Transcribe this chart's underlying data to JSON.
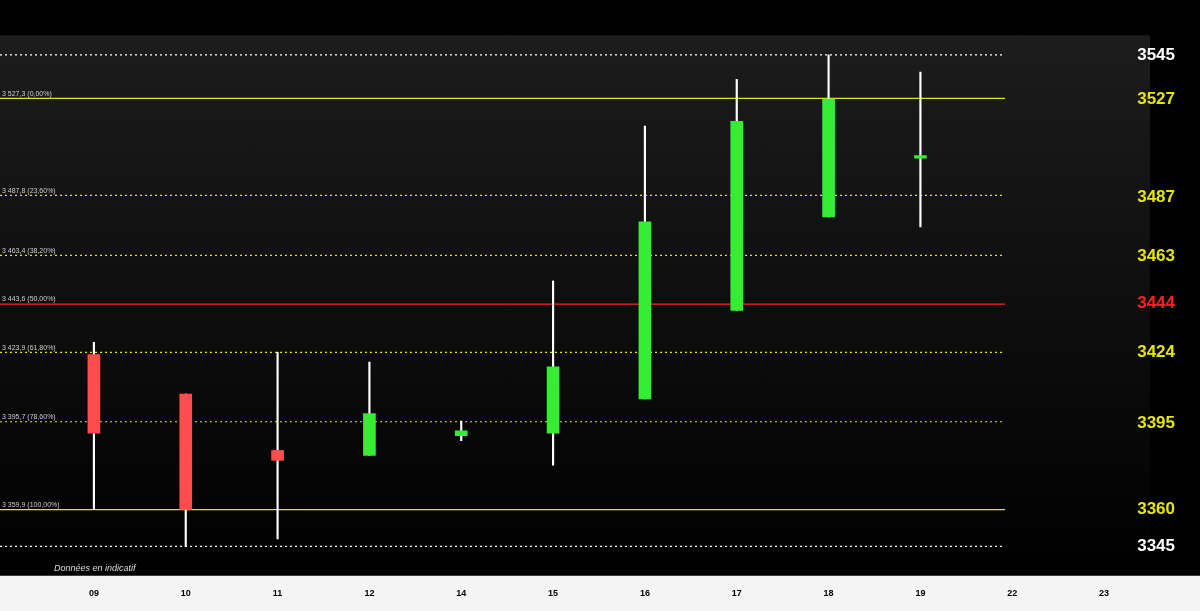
{
  "chart_data": {
    "type": "candlestick",
    "categories": [
      "09",
      "10",
      "11",
      "12",
      "14",
      "15",
      "16",
      "17",
      "18",
      "19",
      "22",
      "23"
    ],
    "ohlc": [
      [
        3423,
        3428,
        3360,
        3391
      ],
      [
        3407,
        3407,
        3345,
        3360
      ],
      [
        3384,
        3424,
        3348,
        3380
      ],
      [
        3382,
        3420,
        3382,
        3399
      ],
      [
        3390,
        3396,
        3388,
        3392
      ],
      [
        3391,
        3453,
        3378,
        3418
      ],
      [
        3405,
        3516,
        3405,
        3477
      ],
      [
        3441,
        3535,
        3441,
        3518
      ],
      [
        3479,
        3545,
        3479,
        3527
      ],
      [
        3503,
        3538,
        3475,
        3504
      ],
      null,
      null
    ],
    "colors": [
      "#ff4d4d",
      "#ff4d4d",
      "#ff4d4d",
      "#33ee33",
      "#33ee33",
      "#33ee33",
      "#33ee33",
      "#33ee33",
      "#33ee33",
      "#33ee33",
      null,
      null
    ],
    "ylim": [
      3333,
      3553
    ],
    "yticks": [
      3545,
      3527,
      3487,
      3463,
      3444,
      3424,
      3395,
      3360,
      3345
    ],
    "ref_lines": [
      {
        "axis": "y",
        "value": 3545,
        "label": null,
        "color": "#ffffff",
        "line_style": "dotted"
      },
      {
        "axis": "y",
        "value": 3527.3,
        "label": "3 527,3 (0,00%)",
        "color": "#e6e600",
        "line_style": "solid"
      },
      {
        "axis": "y",
        "value": 3487.8,
        "label": "3 487,8 (23,60%)",
        "color": "#e6e600",
        "line_style": "dotted"
      },
      {
        "axis": "y",
        "value": 3463.4,
        "label": "3 463,4 (38,20%)",
        "color": "#e6e600",
        "line_style": "dotted"
      },
      {
        "axis": "y",
        "value": 3443.6,
        "label": "3 443,6 (50,00%)",
        "color": "#ff2020",
        "line_style": "solid"
      },
      {
        "axis": "y",
        "value": 3423.9,
        "label": "3 423,9 (61,80%)",
        "color": "#e6e600",
        "line_style": "dotted"
      },
      {
        "axis": "y",
        "value": 3395.7,
        "label": "3 395,7 (78,60%)",
        "color": "#e6e600",
        "line_style": "dotted"
      },
      {
        "axis": "y",
        "value": 3359.9,
        "label": "3 359,9 (100,00%)",
        "color": "#e6e600",
        "line_style": "solid"
      },
      {
        "axis": "y",
        "value": 3345,
        "label": null,
        "color": "#ffffff",
        "line_style": "dotted"
      }
    ],
    "annotations": [
      "Données en indicatif"
    ],
    "grid": false,
    "legend": false
  }
}
